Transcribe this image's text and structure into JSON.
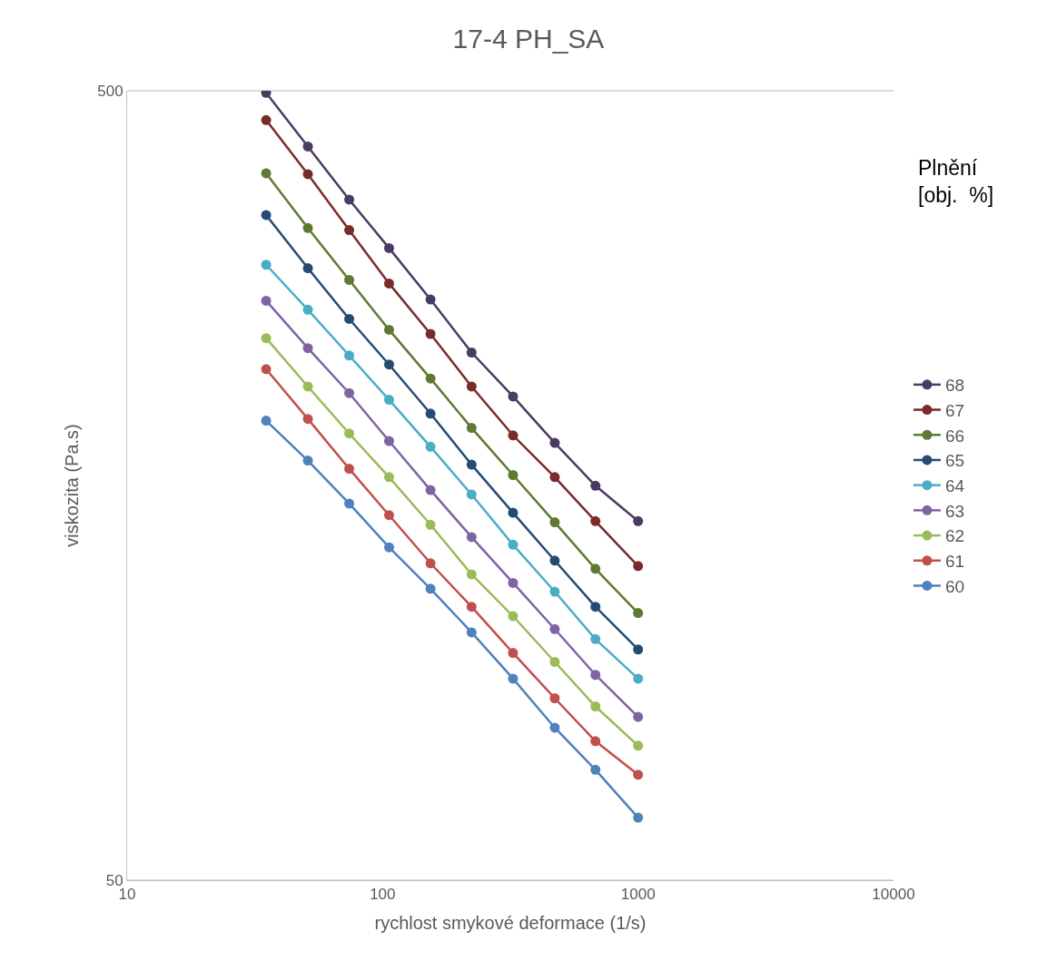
{
  "chart_data": {
    "type": "line",
    "title": "17-4 PH_SA",
    "xlabel": "rychlost smykové deformace (1/s)",
    "ylabel": "viskozita (Pa.s)",
    "legend_title": "Plnění\n[obj.  %]",
    "x": [
      35,
      51,
      74,
      106,
      154,
      223,
      324,
      472,
      681,
      1000
    ],
    "series": [
      {
        "name": "68",
        "color": "#4a3b63",
        "values": [
          497,
          425,
          364,
          316,
          272,
          233,
          205,
          179,
          158,
          142.5
        ]
      },
      {
        "name": "67",
        "color": "#7b2a2a",
        "values": [
          459,
          392,
          333,
          285,
          246,
          211,
          183,
          162,
          142.5,
          125
        ]
      },
      {
        "name": "66",
        "color": "#5e7a32",
        "values": [
          393,
          335,
          288,
          249,
          216,
          187,
          163,
          142,
          124,
          109
        ]
      },
      {
        "name": "65",
        "color": "#264b73",
        "values": [
          348,
          298,
          257,
          225,
          195,
          168,
          146,
          127,
          111,
          98
        ]
      },
      {
        "name": "64",
        "color": "#4bacc6",
        "values": [
          301,
          264,
          231,
          203,
          177,
          154,
          133,
          116,
          101,
          90
        ]
      },
      {
        "name": "63",
        "color": "#8064a2",
        "values": [
          271,
          236,
          207,
          180,
          156,
          136,
          119,
          104,
          91,
          80.5
        ]
      },
      {
        "name": "62",
        "color": "#9bbb59",
        "values": [
          243,
          211,
          184,
          162,
          141,
          122,
          108,
          94.5,
          83,
          74
        ]
      },
      {
        "name": "61",
        "color": "#c0504d",
        "values": [
          222,
          192,
          166,
          145,
          126,
          111,
          97,
          85,
          75,
          68
        ]
      },
      {
        "name": "60",
        "color": "#4f81bd",
        "values": [
          191,
          170,
          150,
          132,
          117,
          103,
          90,
          78,
          69,
          60
        ]
      }
    ],
    "log": "xy",
    "xlim": [
      10,
      10000
    ],
    "xticks": [
      10,
      100,
      1000,
      10000
    ],
    "ylim": [
      50,
      500
    ],
    "yticks": [
      50,
      500
    ],
    "grid": "y",
    "legend": "right",
    "marker": "circle",
    "line_style": "solid"
  }
}
